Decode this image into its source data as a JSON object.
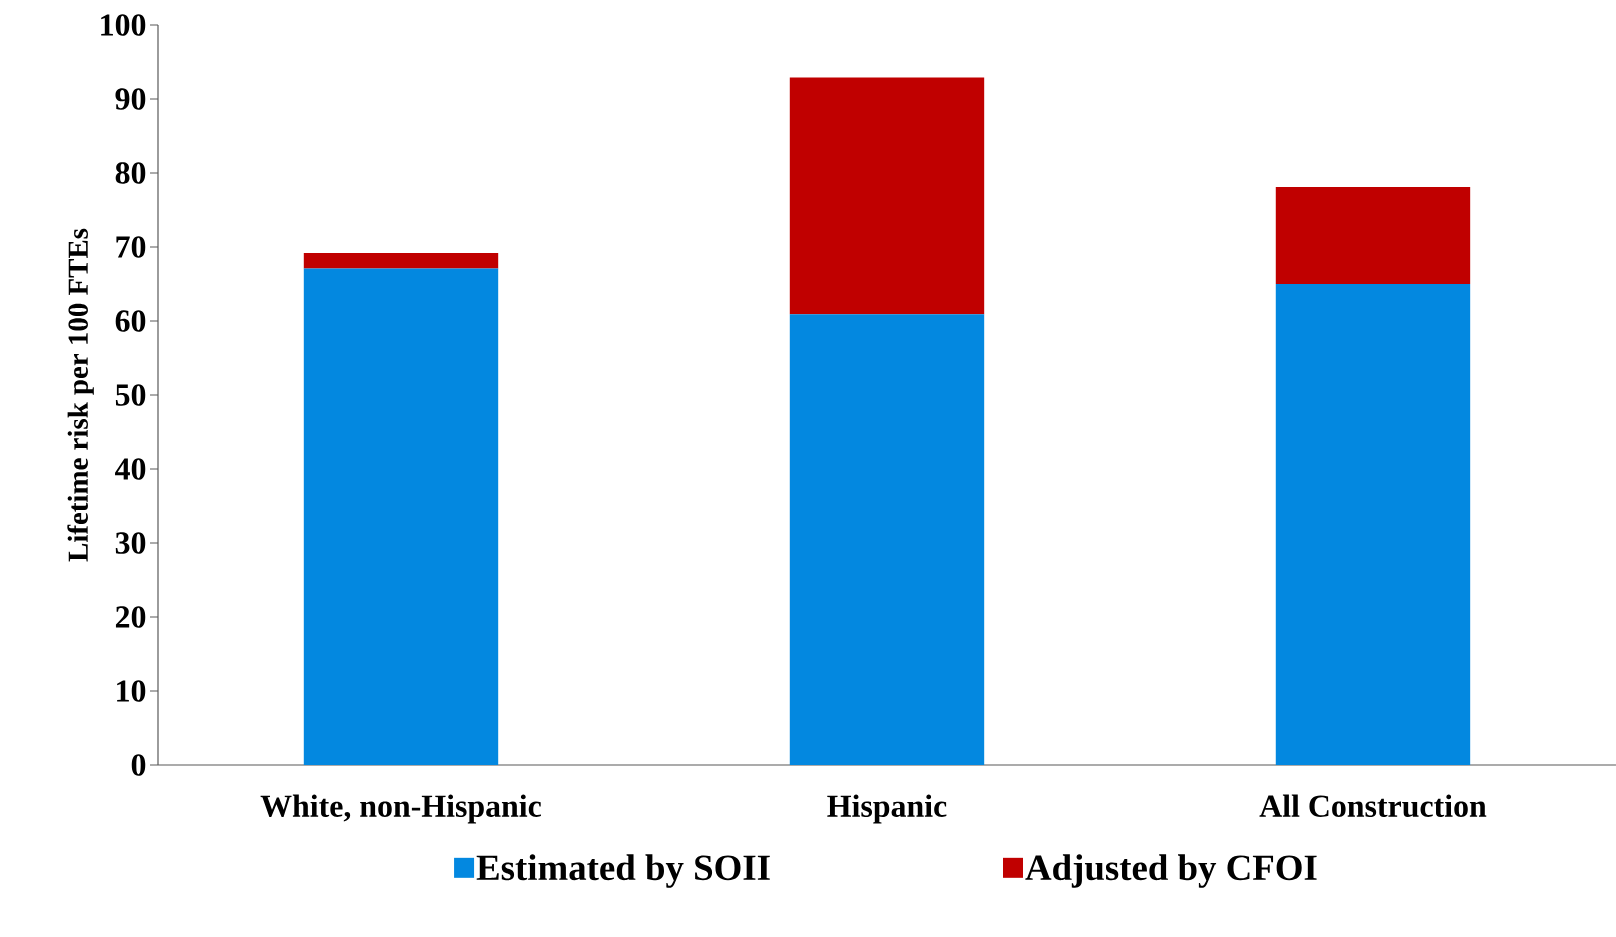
{
  "chart_data": {
    "type": "bar",
    "stacked": true,
    "categories": [
      "White, non-Hispanic",
      "Hispanic",
      "All Construction"
    ],
    "series": [
      {
        "name": "Estimated by SOII",
        "color": "#0388e0",
        "values": [
          67.1,
          60.9,
          65.0
        ]
      },
      {
        "name": "Adjusted by CFOI",
        "color": "#c00000",
        "values": [
          2.1,
          32.0,
          13.1
        ]
      }
    ],
    "ylabel": "Lifetime risk per 100 FTEs",
    "ylim": [
      0,
      100
    ],
    "yticks": [
      0,
      10,
      20,
      30,
      40,
      50,
      60,
      70,
      80,
      90,
      100
    ],
    "legend": "bottom",
    "grid": false
  }
}
